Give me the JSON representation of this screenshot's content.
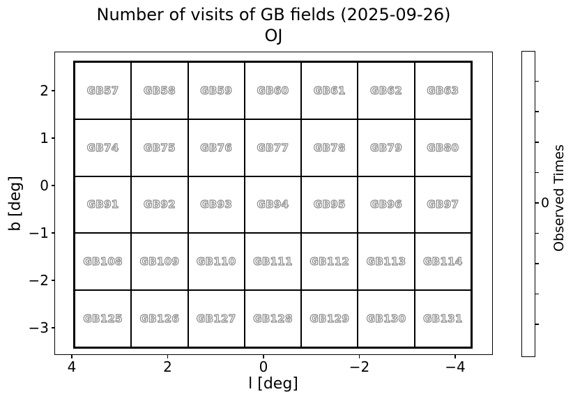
{
  "chart_data": {
    "type": "heatmap",
    "title": "Number of visits of GB fields (2025-09-26)",
    "subtitle": "OJ",
    "xlabel": "l [deg]",
    "ylabel": "b [deg]",
    "x_tick_labels": [
      "4",
      "2",
      "0",
      "−2",
      "−4"
    ],
    "y_tick_labels": [
      "2",
      "1",
      "0",
      "−1",
      "−2",
      "−3"
    ],
    "x_axis_inverted": true,
    "xlim": [
      4.4,
      -4.8
    ],
    "ylim": [
      -3.4,
      2.6
    ],
    "grid_rows": 5,
    "grid_cols": 7,
    "fields": [
      [
        "GB57",
        "GB58",
        "GB59",
        "GB60",
        "GB61",
        "GB62",
        "GB63"
      ],
      [
        "GB74",
        "GB75",
        "GB76",
        "GB77",
        "GB78",
        "GB79",
        "GB80"
      ],
      [
        "GB91",
        "GB92",
        "GB93",
        "GB94",
        "GB95",
        "GB96",
        "GB97"
      ],
      [
        "GB108",
        "GB109",
        "GB110",
        "GB111",
        "GB112",
        "GB113",
        "GB114"
      ],
      [
        "GB125",
        "GB126",
        "GB127",
        "GB128",
        "GB129",
        "GB130",
        "GB131"
      ]
    ],
    "values": [
      [
        0,
        0,
        0,
        0,
        0,
        0,
        0
      ],
      [
        0,
        0,
        0,
        0,
        0,
        0,
        0
      ],
      [
        0,
        0,
        0,
        0,
        0,
        0,
        0
      ],
      [
        0,
        0,
        0,
        0,
        0,
        0,
        0
      ],
      [
        0,
        0,
        0,
        0,
        0,
        0,
        0
      ]
    ],
    "colorbar": {
      "label": "Observed Times",
      "tick_labels": [
        "0"
      ],
      "tick_count": 9
    },
    "colors": {
      "background": "#ffffff",
      "cell_fill": "#ffffff",
      "cell_border": "#000000",
      "field_label_fill": "#ffffff",
      "field_label_outline": "#8a8a8a"
    },
    "legend": "none",
    "grid": "bold field boundaries only"
  }
}
